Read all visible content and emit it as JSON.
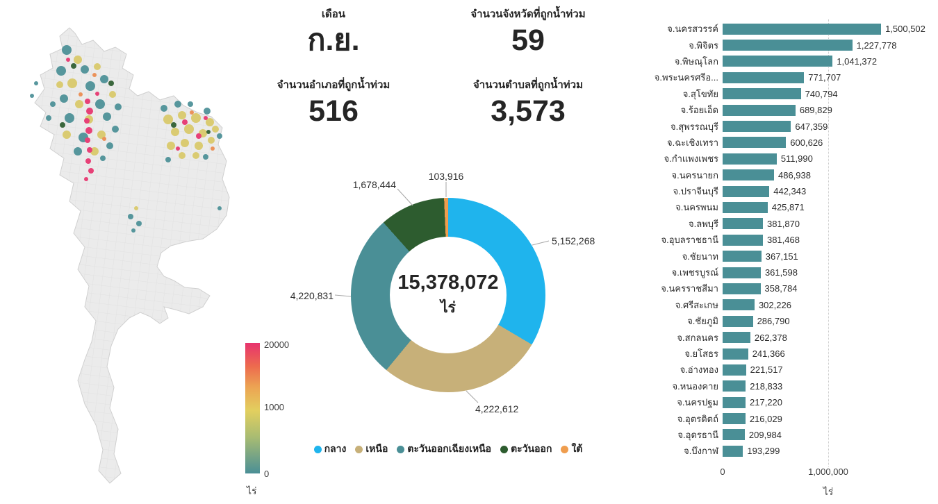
{
  "kpis": {
    "month": {
      "label": "เดือน",
      "value": "ก.ย."
    },
    "provinces": {
      "label": "จำนวนจังหวัดที่ถูกน้ำท่วม",
      "value": "59"
    },
    "districts": {
      "label": "จำนวนอำเภอที่ถูกน้ำท่วม",
      "value": "516"
    },
    "subdistricts": {
      "label": "จำนวนตำบลที่ถูกน้ำท่วม",
      "value": "3,573"
    }
  },
  "map_legend": {
    "max": "20000",
    "mid": "1000",
    "min": "0",
    "unit": "ไร่"
  },
  "chart_data": [
    {
      "type": "pie",
      "subtype": "donut",
      "center_total": "15,378,072",
      "center_unit": "ไร่",
      "legend_position": "bottom",
      "series": [
        {
          "name": "กลาง",
          "value": 5152268,
          "label": "5,152,268",
          "color": "#1FB4ED"
        },
        {
          "name": "เหนือ",
          "value": 4222612,
          "label": "4,222,612",
          "color": "#C7B079"
        },
        {
          "name": "ตะวันออกเฉียงเหนือ",
          "value": 4220831,
          "label": "4,220,831",
          "color": "#4A8F96"
        },
        {
          "name": "ตะวันออก",
          "value": 1678444,
          "label": "1,678,444",
          "color": "#2D5C2F"
        },
        {
          "name": "ใต้",
          "value": 103916,
          "label": "103,916",
          "color": "#EF9D4E"
        }
      ]
    },
    {
      "type": "bar",
      "orientation": "horizontal",
      "bar_color": "#4A8F96",
      "xlabel": "ไร่",
      "x_ticks": [
        "0",
        "1,000,000"
      ],
      "xlim": [
        0,
        1600000
      ],
      "categories": [
        "จ.นครสวรรค์",
        "จ.พิจิตร",
        "จ.พิษณุโลก",
        "จ.พระนครศรีอ...",
        "จ.สุโขทัย",
        "จ.ร้อยเอ็ด",
        "จ.สุพรรณบุรี",
        "จ.ฉะเชิงเทรา",
        "จ.กำแพงเพชร",
        "จ.นครนายก",
        "จ.ปราจีนบุรี",
        "จ.นครพนม",
        "จ.ลพบุรี",
        "จ.อุบลราชธานี",
        "จ.ชัยนาท",
        "จ.เพชรบูรณ์",
        "จ.นครราชสีมา",
        "จ.ศรีสะเกษ",
        "จ.ชัยภูมิ",
        "จ.สกลนคร",
        "จ.ยโสธร",
        "จ.อ่างทอง",
        "จ.หนองคาย",
        "จ.นครปฐม",
        "จ.อุตรดิตถ์",
        "จ.อุดรธานี",
        "จ.บึงกาฬ"
      ],
      "values": [
        1500502,
        1227778,
        1041372,
        771707,
        740794,
        689829,
        647359,
        600626,
        511990,
        486938,
        442343,
        425871,
        381870,
        381468,
        367151,
        361598,
        358784,
        302226,
        286790,
        262378,
        241366,
        221517,
        218833,
        217220,
        216029,
        209984,
        193299
      ],
      "value_labels": [
        "1,500,502",
        "1,227,778",
        "1,041,372",
        "771,707",
        "740,794",
        "689,829",
        "647,359",
        "600,626",
        "511,990",
        "486,938",
        "442,343",
        "425,871",
        "381,870",
        "381,468",
        "367,151",
        "361,598",
        "358,784",
        "302,226",
        "286,790",
        "262,378",
        "241,366",
        "221,517",
        "218,833",
        "217,220",
        "216,029",
        "209,984",
        "193,299"
      ]
    }
  ]
}
